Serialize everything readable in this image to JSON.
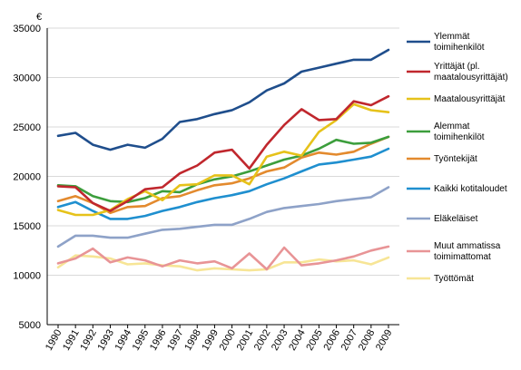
{
  "chart_data": {
    "type": "line",
    "unit_label": "€",
    "ylim": [
      5000,
      35000
    ],
    "yticks": [
      "5000",
      "10000",
      "15000",
      "20000",
      "25000",
      "30000",
      "35000"
    ],
    "x": [
      "1990",
      "1991",
      "1992",
      "1993",
      "1994",
      "1995",
      "1996",
      "1997",
      "1998",
      "1999",
      "2000",
      "2001",
      "2002",
      "2003",
      "2004",
      "2005",
      "2006",
      "2007",
      "2008",
      "2009"
    ],
    "grid": true,
    "legend_position": "right",
    "series": [
      {
        "name": "Ylemmät toimihenkilöt",
        "label_lines": [
          "Ylemmät",
          "toimihenkilöt"
        ],
        "color": "#1f4e8c",
        "values": [
          24100,
          24400,
          23200,
          22700,
          23200,
          22900,
          23800,
          25500,
          25800,
          26300,
          26700,
          27500,
          28700,
          29400,
          30600,
          31000,
          31400,
          31800,
          31800,
          32800
        ]
      },
      {
        "name": "Yrittäjät (pl. maatalousyrittäjät)",
        "label_lines": [
          "Yrittäjät (pl.",
          "maatalousyrittäjät)"
        ],
        "color": "#c0272d",
        "values": [
          19000,
          18900,
          17300,
          16500,
          17500,
          18700,
          18900,
          20300,
          21100,
          22400,
          22700,
          20800,
          23200,
          25200,
          26800,
          25700,
          25800,
          27600,
          27200,
          28100
        ]
      },
      {
        "name": "Maatalousyrittäjät",
        "label_lines": [
          "Maatalousyrittäjät"
        ],
        "color": "#e6c21a",
        "values": [
          16600,
          16100,
          16100,
          16600,
          17700,
          18500,
          17600,
          19100,
          19200,
          20100,
          20100,
          19200,
          22000,
          22500,
          22100,
          24500,
          25700,
          27300,
          26700,
          26500
        ]
      },
      {
        "name": "Alemmat toimihenkilöt",
        "label_lines": [
          "Alemmat",
          "toimihenkilöt"
        ],
        "color": "#3c9e3c",
        "values": [
          19100,
          19000,
          18000,
          17500,
          17400,
          17800,
          18500,
          18400,
          19200,
          19700,
          20000,
          20500,
          21100,
          21700,
          22100,
          22800,
          23700,
          23300,
          23400,
          24000
        ]
      },
      {
        "name": "Työntekijät",
        "label_lines": [
          "Työntekijät"
        ],
        "color": "#e38a2e",
        "values": [
          17500,
          18000,
          17300,
          16300,
          16900,
          17000,
          17800,
          18000,
          18600,
          19100,
          19300,
          19800,
          20500,
          20900,
          21900,
          22400,
          22200,
          22500,
          23300,
          24000
        ]
      },
      {
        "name": "Kaikki kotitaloudet",
        "label_lines": [
          "Kaikki kotitaloudet"
        ],
        "color": "#1f8fcf",
        "values": [
          16900,
          17400,
          16500,
          15700,
          15700,
          16000,
          16500,
          16900,
          17400,
          17800,
          18100,
          18500,
          19200,
          19800,
          20500,
          21200,
          21400,
          21700,
          22000,
          22800
        ]
      },
      {
        "name": "Eläkeläiset",
        "label_lines": [
          "Eläkeläiset"
        ],
        "color": "#8ea2c8",
        "values": [
          12900,
          14000,
          14000,
          13800,
          13800,
          14200,
          14600,
          14700,
          14900,
          15100,
          15100,
          15700,
          16400,
          16800,
          17000,
          17200,
          17500,
          17700,
          17900,
          18900
        ]
      },
      {
        "name": "Muut ammatissa toimimattomat",
        "label_lines": [
          "Muut ammatissa",
          "toimimattomat"
        ],
        "color": "#e89496",
        "values": [
          11200,
          11700,
          12700,
          11300,
          11800,
          11500,
          10900,
          11500,
          11200,
          11400,
          10700,
          12200,
          10600,
          12800,
          11000,
          11200,
          11500,
          11900,
          12500,
          12900
        ]
      },
      {
        "name": "Työttömät",
        "label_lines": [
          "Työttömät"
        ],
        "color": "#f7e596",
        "values": [
          10800,
          12000,
          11900,
          11700,
          11100,
          11200,
          11000,
          10900,
          10500,
          10700,
          10600,
          10500,
          10600,
          11300,
          11300,
          11600,
          11400,
          11500,
          11100,
          11800
        ]
      }
    ]
  }
}
